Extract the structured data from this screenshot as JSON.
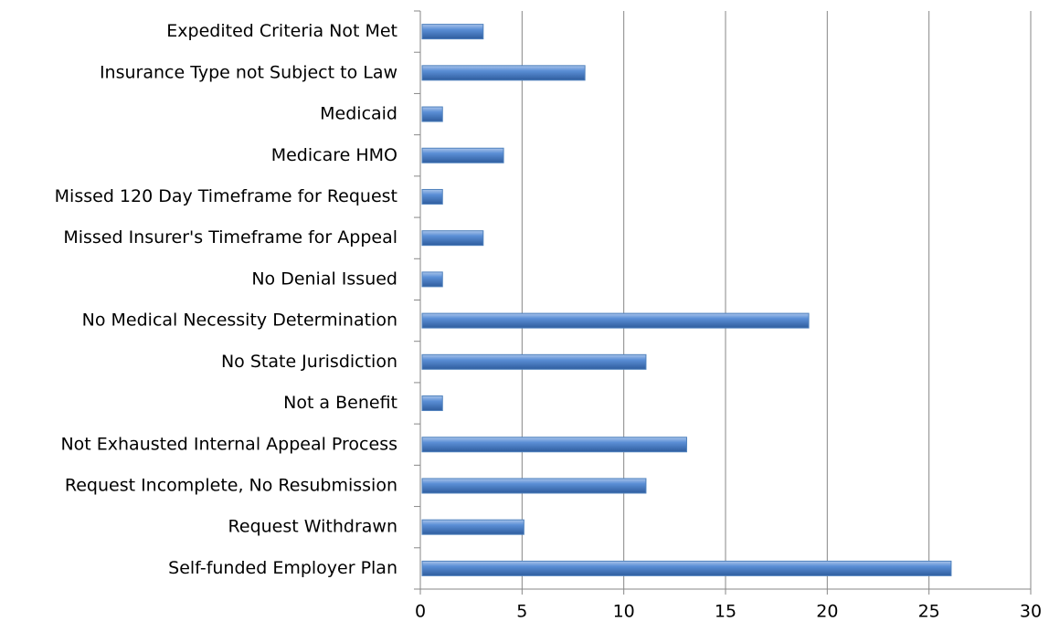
{
  "chart_data": {
    "type": "bar",
    "orientation": "horizontal",
    "categories": [
      "Expedited Criteria Not Met",
      "Insurance Type not Subject to Law",
      "Medicaid",
      "Medicare HMO",
      "Missed 120 Day Timeframe for Request",
      "Missed Insurer's Timeframe for Appeal",
      "No Denial Issued",
      "No Medical Necessity Determination",
      "No State Jurisdiction",
      "Not a Benefit",
      "Not Exhausted Internal Appeal Process",
      "Request Incomplete, No Resubmission",
      "Request Withdrawn",
      "Self-funded Employer Plan"
    ],
    "values": [
      3,
      8,
      1,
      4,
      1,
      3,
      1,
      19,
      11,
      1,
      13,
      11,
      5,
      26
    ],
    "color": "#4f81bd",
    "xlim": [
      0,
      30
    ],
    "xticks": [
      0,
      5,
      10,
      15,
      20,
      25,
      30
    ],
    "grid": true
  }
}
